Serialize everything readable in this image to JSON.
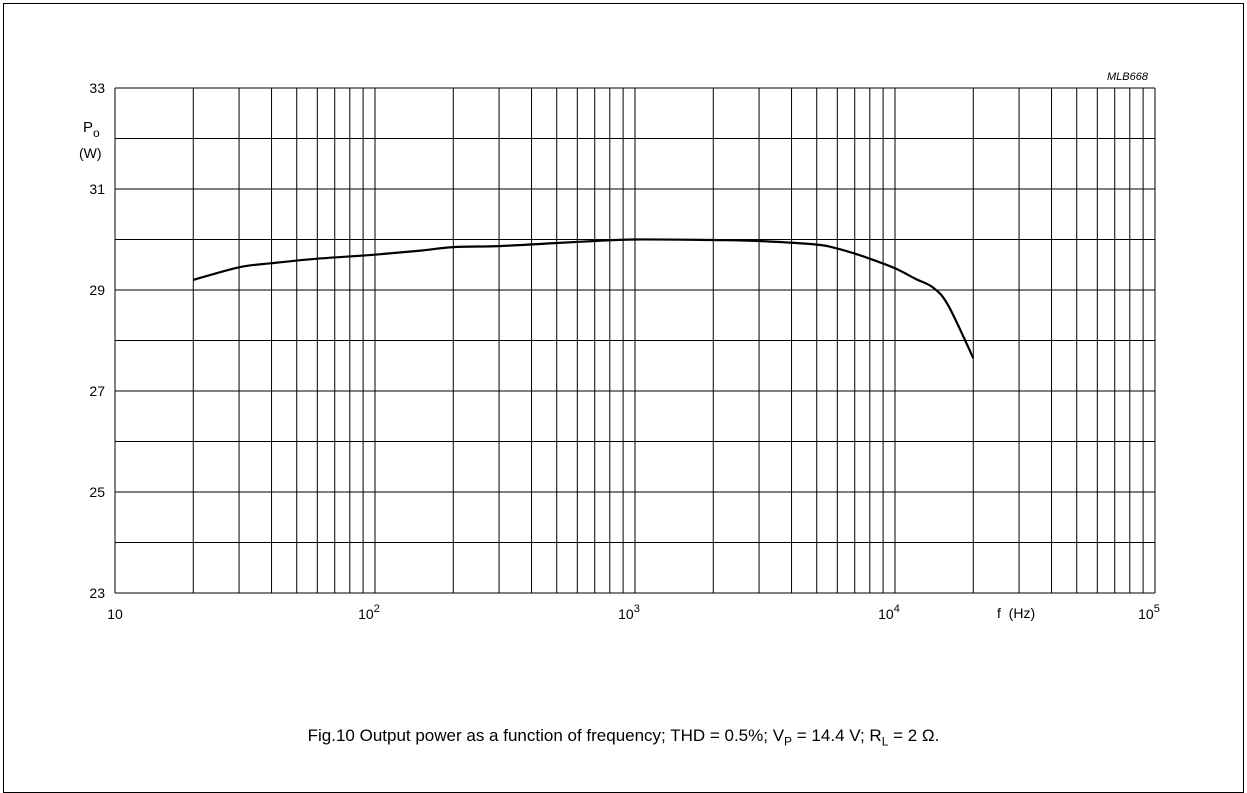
{
  "figure_code": "MLB668",
  "caption": {
    "prefix": "Fig.10  Output power as a function of frequency; THD = 0.5%; V",
    "vp_sub": "P",
    "vp_value": " = 14.4 V; R",
    "rl_sub": "L",
    "rl_value": " = 2 Ω."
  },
  "chart_data": {
    "type": "line",
    "x_scale": "log",
    "xlim": [
      10,
      100000
    ],
    "ylim": [
      23,
      33
    ],
    "xlabel": "f  (Hz)",
    "ylabel": {
      "symbol": "P",
      "subscript": "o",
      "unit": "(W)"
    },
    "x_ticks": [
      {
        "value": 10,
        "base": "10",
        "exp": ""
      },
      {
        "value": 100,
        "base": "10",
        "exp": "2"
      },
      {
        "value": 1000,
        "base": "10",
        "exp": "3"
      },
      {
        "value": 10000,
        "base": "10",
        "exp": "4"
      },
      {
        "value": 100000,
        "base": "10",
        "exp": "5"
      }
    ],
    "y_ticks": [
      23,
      25,
      27,
      29,
      31,
      33
    ],
    "grid": true,
    "series": [
      {
        "x": [
          20,
          30,
          40,
          60,
          100,
          150,
          200,
          300,
          500,
          700,
          1000,
          2000,
          3000,
          5000,
          6000,
          7000,
          8000,
          10000,
          12000,
          14000,
          16000,
          20000
        ],
        "y": [
          29.2,
          29.45,
          29.53,
          29.62,
          29.7,
          29.78,
          29.85,
          29.87,
          29.93,
          29.97,
          30.0,
          29.99,
          29.97,
          29.9,
          29.82,
          29.72,
          29.62,
          29.43,
          29.22,
          29.05,
          28.7,
          27.65
        ]
      }
    ]
  }
}
